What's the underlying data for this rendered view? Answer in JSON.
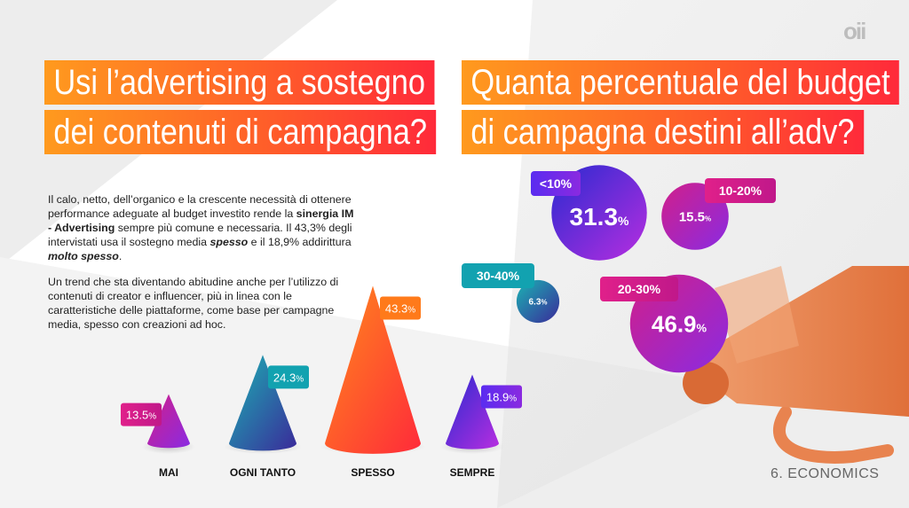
{
  "logo": "oii",
  "titles": {
    "left_line1": "Usi l’advertising a sostegno",
    "left_line2": "dei contenuti di campagna?",
    "right_line1": "Quanta percentuale del budget",
    "right_line2": "di campagna destini all’adv?"
  },
  "paragraphs": {
    "p1_a": "Il calo, netto, dell’organico e la crescente necessità di ottenere performance adeguate al budget investito rende la ",
    "p1_b": "sinergia IM - Advertising",
    "p1_c": " sempre più comune e necessaria. Il 43,3% degli intervistati usa il sostegno media ",
    "p1_d": "spesso",
    "p1_e": " e il 18,9% addirittura ",
    "p1_f": "molto spesso",
    "p1_g": ".",
    "p2": "Un trend che sta diventando abitudine anche per l’utilizzo di contenuti di creator e influencer, più in linea con le caratteristiche delle piattaforme, come base per campagne media, spesso con creazioni ad hoc."
  },
  "section_label": "6. ECONOMICS",
  "colors": {
    "orange": "#ff7a1a",
    "red": "#ff2a3a",
    "magenta": "#c2188a",
    "purple": "#6a2cf0",
    "teal": "#12a2b0",
    "megaphone": "#e8834f"
  },
  "chart_data": [
    {
      "type": "bar",
      "style": "cone",
      "categories": [
        "MAI",
        "OGNI TANTO",
        "SPESSO",
        "SEMPRE"
      ],
      "values": [
        13.5,
        24.3,
        43.3,
        18.9
      ],
      "value_labels": [
        "13.5",
        "24.3",
        "43.3",
        "18.9"
      ],
      "unit": "%",
      "ylim": [
        0,
        45
      ]
    },
    {
      "type": "bubble",
      "categories": [
        "<10%",
        "10-20%",
        "30-40%",
        "20-30%"
      ],
      "values": [
        31.3,
        15.5,
        6.3,
        46.9
      ],
      "value_labels": [
        "31.3",
        "15.5",
        "6.3",
        "46.9"
      ],
      "unit": "%"
    }
  ]
}
